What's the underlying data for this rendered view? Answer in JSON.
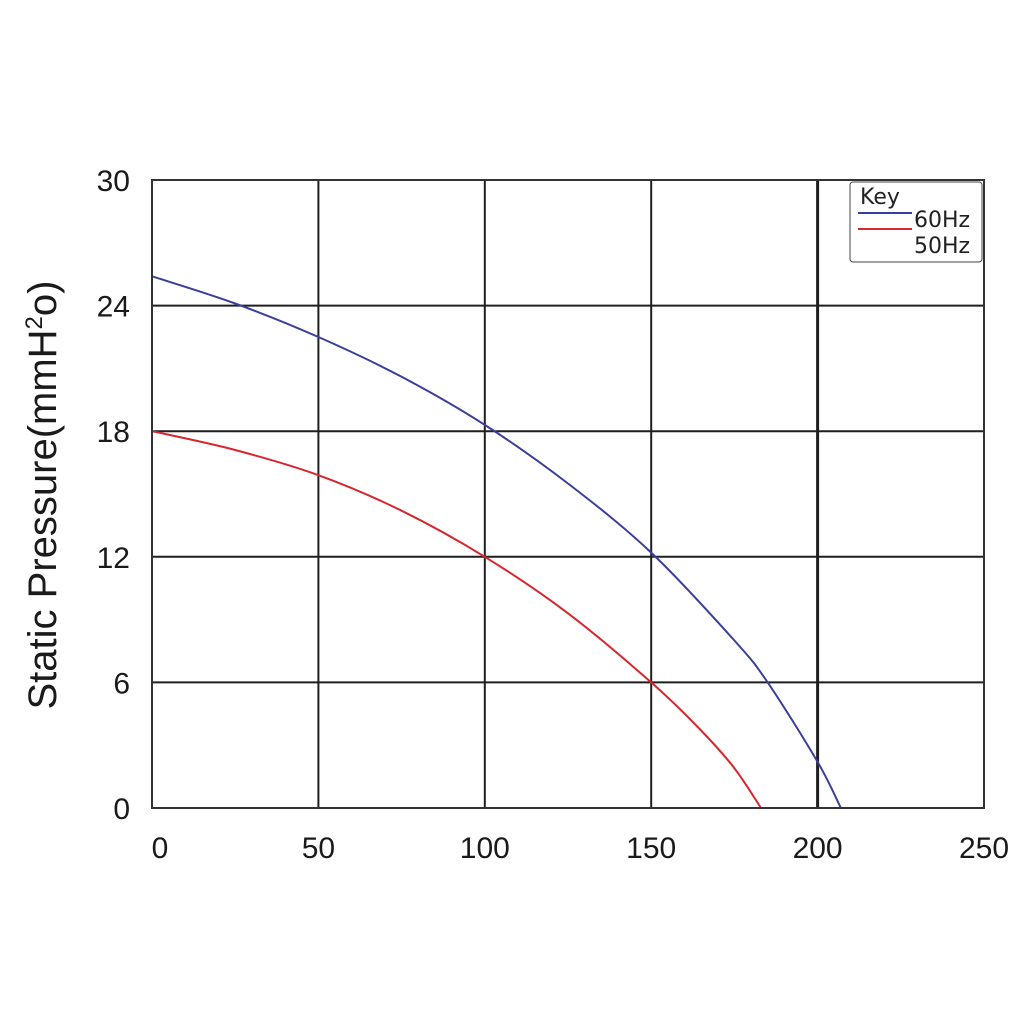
{
  "chart_data": {
    "type": "line",
    "title": "",
    "xlabel": "",
    "ylabel": "Static Pressure(mmH",
    "ylabel_sup": "2",
    "ylabel_tail": "o)",
    "xlim": [
      0,
      250
    ],
    "ylim": [
      0,
      30
    ],
    "x_ticks": [
      0,
      50,
      100,
      150,
      200,
      250
    ],
    "x_tick_labels": [
      "0",
      "50",
      "100",
      "150",
      "200",
      "250"
    ],
    "y_ticks": [
      0,
      6,
      12,
      18,
      24,
      30
    ],
    "y_tick_labels": [
      "0",
      "6",
      "12",
      "18",
      "24",
      "30"
    ],
    "grid": true,
    "legend": {
      "title": "Key",
      "placement": "top-right"
    },
    "series": [
      {
        "name": "60Hz",
        "color": "#3a3f9a",
        "x": [
          0,
          25,
          50,
          75,
          100,
          125,
          150,
          175,
          185,
          200,
          207
        ],
        "y": [
          25.4,
          24.1,
          22.5,
          20.6,
          18.3,
          15.5,
          12.2,
          8.0,
          6.0,
          2.2,
          0
        ]
      },
      {
        "name": "50Hz",
        "color": "#d8262e",
        "x": [
          0,
          25,
          50,
          75,
          100,
          125,
          150,
          165,
          175,
          183
        ],
        "y": [
          18.0,
          17.1,
          15.9,
          14.2,
          12.0,
          9.3,
          6.0,
          3.7,
          1.9,
          0
        ]
      }
    ]
  }
}
